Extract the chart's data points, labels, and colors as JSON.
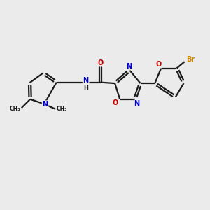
{
  "background_color": "#ebebeb",
  "bond_color": "#1a1a1a",
  "atom_colors": {
    "N": "#0000cc",
    "O": "#cc0000",
    "Br": "#cc8800",
    "C": "#1a1a1a",
    "H": "#1a1a1a"
  },
  "figsize": [
    3.0,
    3.0
  ],
  "dpi": 100,
  "xlim": [
    0,
    10
  ],
  "ylim": [
    0,
    10
  ]
}
